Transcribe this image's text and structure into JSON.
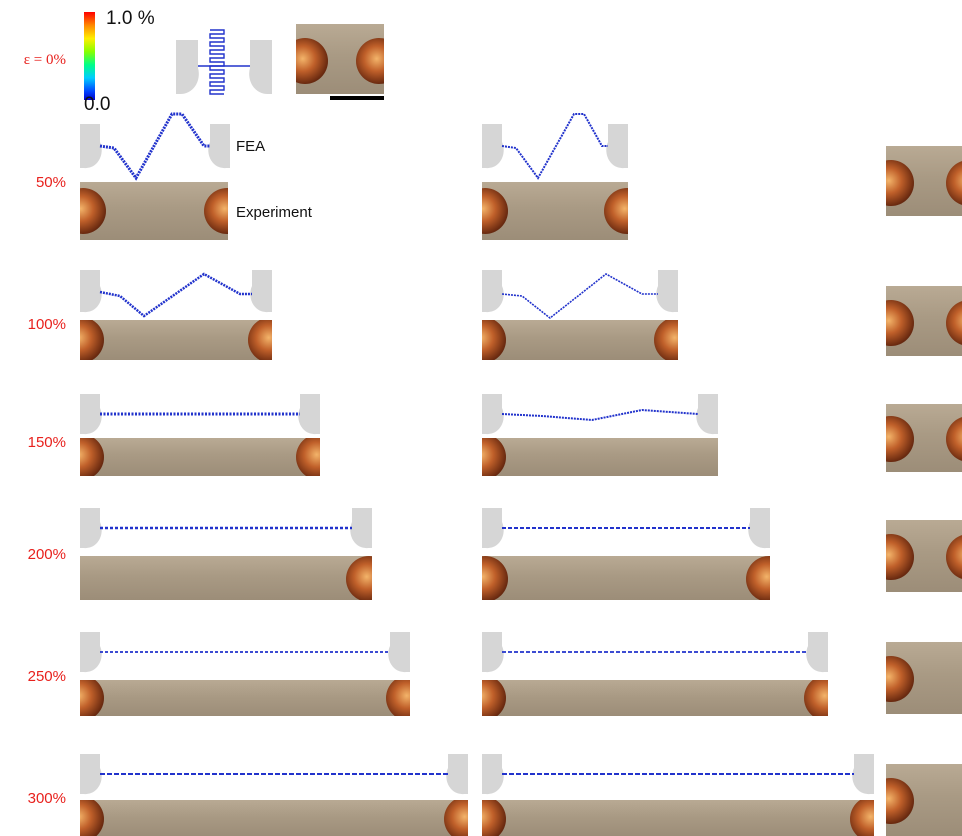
{
  "strain_labels": {
    "initial": "ε = 0%",
    "s50": "50%",
    "s100": "100%",
    "s150": "150%",
    "s200": "200%",
    "s250": "250%",
    "s300": "300%"
  },
  "colorbar": {
    "max_label": "1.0 %",
    "min_label": "0.0",
    "colors": [
      "#ff0000",
      "#ff7f00",
      "#ffff00",
      "#7fff00",
      "#00ff7f",
      "#00bfff",
      "#0000ff"
    ]
  },
  "legend": {
    "fea_label": "FEA",
    "experiment_label": "Experiment"
  },
  "colors": {
    "strain_label": "#e8211d",
    "serpentine": "#2233cc",
    "pad_gray": "#d6d6d6"
  }
}
